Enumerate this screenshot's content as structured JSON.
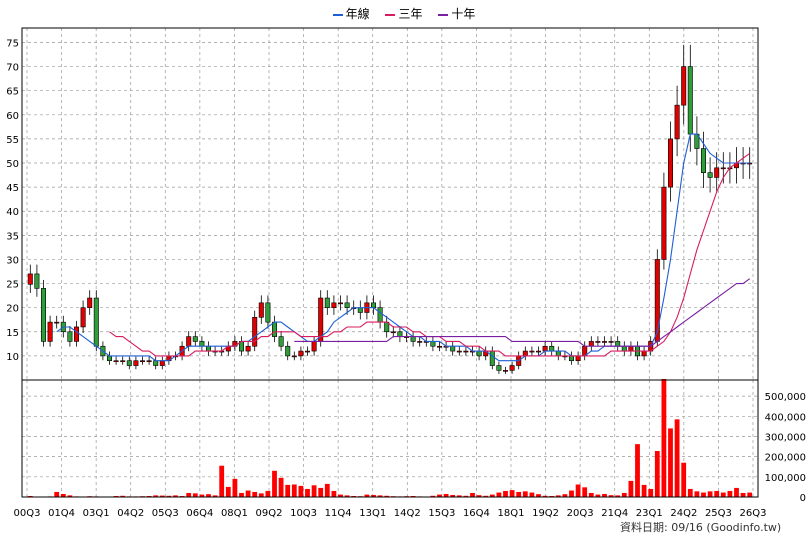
{
  "legend": {
    "items": [
      {
        "label": "年線",
        "color": "#1f5fd6"
      },
      {
        "label": "三年",
        "color": "#d81b60"
      },
      {
        "label": "十年",
        "color": "#7b1fa2"
      }
    ]
  },
  "footer": {
    "text": "資料日期: 09/16  (Goodinfo.tw)"
  },
  "colors": {
    "up": "#e00000",
    "down": "#2e9d3a",
    "volume": "#ff0000"
  },
  "chart_data": [
    {
      "type": "candlestick",
      "title": "",
      "x_ticks": [
        "00Q3",
        "01Q4",
        "03Q1",
        "04Q2",
        "05Q3",
        "06Q4",
        "08Q1",
        "09Q2",
        "10Q3",
        "11Q4",
        "13Q1",
        "14Q2",
        "15Q3",
        "16Q4",
        "18Q1",
        "19Q2",
        "20Q3",
        "21Q4",
        "23Q1",
        "24Q2",
        "25Q3",
        "26Q3"
      ],
      "y_ticks": [
        10,
        15,
        20,
        25,
        30,
        35,
        40,
        45,
        50,
        55,
        60,
        65,
        70,
        75
      ],
      "ylim": [
        5,
        78
      ],
      "grid": true,
      "close_approx": [
        27,
        24,
        13,
        17,
        17,
        15,
        13,
        16,
        20,
        22,
        12,
        10,
        9,
        9,
        9,
        8,
        9,
        9,
        9,
        8,
        9,
        10,
        10,
        12,
        14,
        13,
        12,
        11,
        11,
        11,
        12,
        13,
        11,
        12,
        18,
        21,
        17,
        14,
        12,
        10,
        10,
        11,
        11,
        13,
        22,
        20,
        21,
        21,
        20,
        20,
        19,
        21,
        20,
        17,
        15,
        15,
        14,
        14,
        13,
        13,
        13,
        12,
        12,
        12,
        11,
        11,
        11,
        11,
        10,
        11,
        8,
        7,
        7,
        8,
        10,
        11,
        11,
        11,
        12,
        11,
        10,
        10,
        9,
        10,
        12,
        13,
        13,
        13,
        13,
        12,
        11,
        12,
        10,
        11,
        13,
        30,
        45,
        55,
        62,
        70,
        56,
        53,
        48,
        47,
        49,
        49,
        49,
        50,
        50,
        50
      ],
      "series": [
        {
          "name": "年線",
          "values": [
            null,
            null,
            null,
            null,
            15,
            16,
            16,
            15,
            14,
            13,
            12,
            11,
            10,
            10,
            10,
            10,
            10,
            10,
            10,
            9,
            9,
            9,
            10,
            11,
            12,
            12,
            12,
            12,
            12,
            12,
            12,
            12,
            13,
            13,
            14,
            15,
            16,
            17,
            17,
            16,
            15,
            14,
            13,
            13,
            14,
            15,
            17,
            18,
            19,
            20,
            20,
            20,
            20,
            19,
            18,
            17,
            16,
            15,
            14,
            14,
            13,
            13,
            13,
            12,
            12,
            12,
            12,
            11,
            11,
            11,
            10,
            9,
            9,
            9,
            9,
            10,
            10,
            10,
            11,
            11,
            11,
            11,
            10,
            10,
            10,
            11,
            11,
            12,
            12,
            12,
            12,
            12,
            12,
            12,
            12,
            15,
            22,
            30,
            40,
            50,
            56,
            56,
            54,
            52,
            51,
            50,
            50,
            50,
            50,
            50
          ]
        },
        {
          "name": "三年",
          "values": [
            null,
            null,
            null,
            null,
            null,
            null,
            null,
            null,
            null,
            null,
            null,
            null,
            15,
            14,
            14,
            13,
            12,
            11,
            11,
            10,
            10,
            10,
            10,
            10,
            10,
            11,
            11,
            11,
            11,
            11,
            12,
            12,
            13,
            13,
            13,
            14,
            14,
            15,
            15,
            15,
            15,
            14,
            14,
            14,
            14,
            14,
            15,
            15,
            16,
            16,
            16,
            17,
            17,
            17,
            17,
            16,
            16,
            16,
            15,
            15,
            14,
            14,
            14,
            13,
            13,
            13,
            12,
            12,
            12,
            11,
            11,
            11,
            10,
            10,
            10,
            10,
            10,
            10,
            10,
            10,
            10,
            10,
            10,
            10,
            10,
            10,
            10,
            10,
            11,
            11,
            11,
            11,
            11,
            11,
            11,
            12,
            13,
            15,
            18,
            22,
            27,
            32,
            36,
            40,
            44,
            47,
            49,
            50,
            51,
            52
          ]
        },
        {
          "name": "十年",
          "values": [
            null,
            null,
            null,
            null,
            null,
            null,
            null,
            null,
            null,
            null,
            null,
            null,
            null,
            null,
            null,
            null,
            null,
            null,
            null,
            null,
            null,
            null,
            null,
            null,
            null,
            null,
            null,
            null,
            null,
            null,
            null,
            null,
            null,
            null,
            null,
            null,
            null,
            null,
            null,
            null,
            13,
            13,
            13,
            13,
            13,
            13,
            13,
            13,
            13,
            13,
            13,
            13,
            13,
            13,
            13,
            14,
            14,
            14,
            14,
            14,
            14,
            14,
            14,
            14,
            14,
            14,
            14,
            14,
            14,
            14,
            14,
            14,
            14,
            13,
            13,
            13,
            13,
            13,
            13,
            13,
            13,
            13,
            13,
            13,
            12,
            12,
            12,
            12,
            12,
            12,
            12,
            12,
            12,
            12,
            12,
            13,
            14,
            15,
            16,
            17,
            18,
            19,
            20,
            21,
            22,
            23,
            24,
            25,
            25,
            26
          ]
        }
      ]
    },
    {
      "type": "bar",
      "title": "",
      "x_ticks": [
        "00Q3",
        "01Q4",
        "03Q1",
        "04Q2",
        "05Q3",
        "06Q4",
        "08Q1",
        "09Q2",
        "10Q3",
        "11Q4",
        "13Q1",
        "14Q2",
        "15Q3",
        "16Q4",
        "18Q1",
        "19Q2",
        "20Q3",
        "21Q4",
        "23Q1",
        "24Q2",
        "25Q3",
        "26Q3"
      ],
      "y_ticks": [
        "0",
        "100,000",
        "200,000",
        "300,000",
        "400,000",
        "500,000"
      ],
      "ylim": [
        0,
        580000
      ],
      "grid": true,
      "values": [
        5000,
        2000,
        1000,
        3000,
        25000,
        15000,
        8000,
        3000,
        2000,
        4000,
        3000,
        2000,
        2000,
        5000,
        6000,
        3000,
        3000,
        4000,
        5000,
        8000,
        7000,
        6000,
        8000,
        5000,
        20000,
        18000,
        12000,
        14000,
        8000,
        155000,
        50000,
        90000,
        20000,
        32000,
        25000,
        18000,
        30000,
        130000,
        95000,
        60000,
        62000,
        55000,
        40000,
        58000,
        45000,
        65000,
        30000,
        12000,
        8000,
        5000,
        4000,
        12000,
        10000,
        8000,
        6000,
        4000,
        3000,
        4000,
        5000,
        3000,
        2000,
        6000,
        12000,
        15000,
        10000,
        8000,
        6000,
        20000,
        9000,
        6000,
        12000,
        22000,
        30000,
        34000,
        25000,
        28000,
        22000,
        14000,
        6000,
        5000,
        8000,
        14000,
        32000,
        62000,
        48000,
        20000,
        12000,
        15000,
        9000,
        8000,
        20000,
        80000,
        262000,
        60000,
        40000,
        228000,
        585000,
        340000,
        385000,
        170000,
        40000,
        28000,
        22000,
        28000,
        30000,
        22000,
        30000,
        45000,
        20000,
        22000
      ]
    }
  ]
}
